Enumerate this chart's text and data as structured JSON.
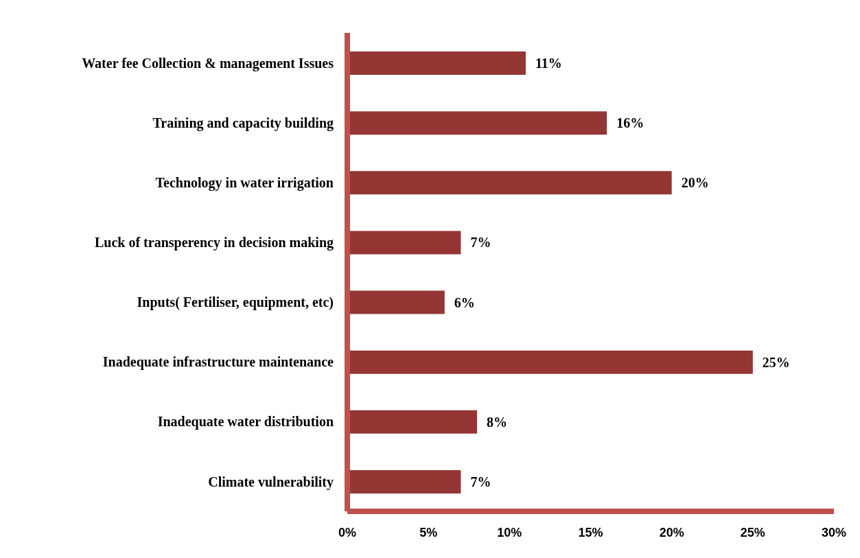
{
  "chart_data": {
    "type": "bar",
    "orientation": "horizontal",
    "categories": [
      "Water fee Collection & management Issues",
      "Training and capacity building",
      "Technology in water irrigation",
      "Luck  of transperency in decision making",
      "Inputs( Fertiliser, equipment, etc)",
      "Inadequate infrastructure maintenance",
      "Inadequate  water distribution",
      "Climate vulnerability"
    ],
    "values": [
      11,
      16,
      20,
      7,
      6,
      25,
      8,
      7
    ],
    "value_labels": [
      "11%",
      "16%",
      "20%",
      "7%",
      "6%",
      "25%",
      "8%",
      "7%"
    ],
    "color": "#943634",
    "xlim": [
      0,
      30
    ],
    "xticks": [
      {
        "value": 0,
        "label": "0%"
      },
      {
        "value": 5,
        "label": "5%"
      },
      {
        "value": 10,
        "label": "10%"
      },
      {
        "value": 15,
        "label": "15%"
      },
      {
        "value": 20,
        "label": "20%"
      },
      {
        "value": 25,
        "label": "25%"
      },
      {
        "value": 30,
        "label": "30%"
      }
    ],
    "grid": false,
    "legend": false
  }
}
